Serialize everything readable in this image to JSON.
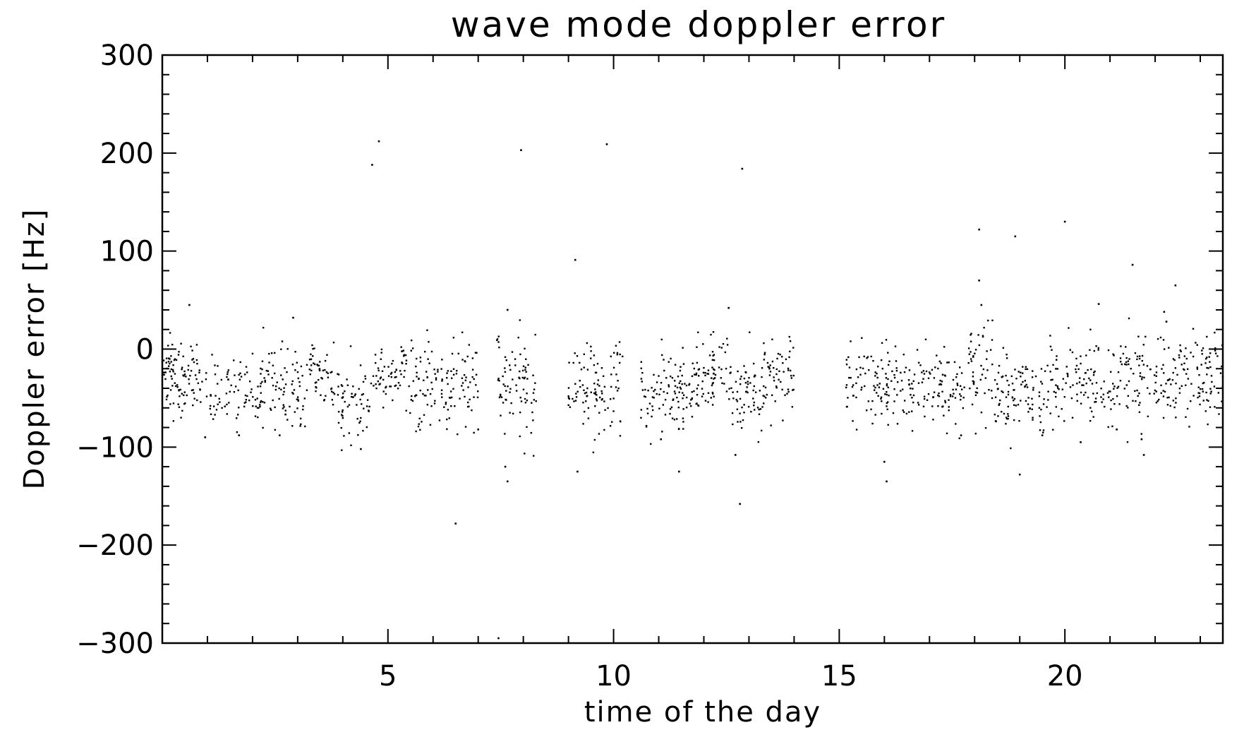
{
  "chart_data": {
    "type": "scatter",
    "title": "wave mode doppler error",
    "xlabel": "time of the day",
    "ylabel": "Doppler error [Hz]",
    "xlim": [
      0,
      23.5
    ],
    "ylim": [
      -300,
      300
    ],
    "xticks": [
      {
        "value": 5,
        "label": "5"
      },
      {
        "value": 10,
        "label": "10"
      },
      {
        "value": 15,
        "label": "15"
      },
      {
        "value": 20,
        "label": "20"
      }
    ],
    "yticks": [
      {
        "value": 300,
        "label": "300"
      },
      {
        "value": 200,
        "label": "200"
      },
      {
        "value": 100,
        "label": "100"
      },
      {
        "value": 0,
        "label": "0"
      },
      {
        "value": -100,
        "label": "−100"
      },
      {
        "value": -200,
        "label": "−200"
      },
      {
        "value": -300,
        "label": "−300"
      }
    ],
    "grid": false,
    "legend": "none",
    "marker_color": "#000000",
    "clusters": [
      {
        "x_start": 0.0,
        "x_end": 0.8,
        "center": -30,
        "spread": 22,
        "count": 90
      },
      {
        "x_start": 0.8,
        "x_end": 2.2,
        "center": -45,
        "spread": 18,
        "count": 90
      },
      {
        "x_start": 2.2,
        "x_end": 3.2,
        "center": -35,
        "spread": 25,
        "count": 80
      },
      {
        "x_start": 3.2,
        "x_end": 3.8,
        "center": -25,
        "spread": 15,
        "count": 50
      },
      {
        "x_start": 3.8,
        "x_end": 4.6,
        "center": -50,
        "spread": 20,
        "count": 60
      },
      {
        "x_start": 4.6,
        "x_end": 5.4,
        "center": -25,
        "spread": 15,
        "count": 60
      },
      {
        "x_start": 5.4,
        "x_end": 6.3,
        "center": -40,
        "spread": 25,
        "count": 70
      },
      {
        "x_start": 6.3,
        "x_end": 7.0,
        "center": -30,
        "spread": 25,
        "count": 60
      },
      {
        "x_start": 7.4,
        "x_end": 8.3,
        "center": -35,
        "spread": 28,
        "count": 80
      },
      {
        "x_start": 9.0,
        "x_end": 10.2,
        "center": -40,
        "spread": 25,
        "count": 100
      },
      {
        "x_start": 10.6,
        "x_end": 11.6,
        "center": -45,
        "spread": 20,
        "count": 90
      },
      {
        "x_start": 11.6,
        "x_end": 12.6,
        "center": -30,
        "spread": 20,
        "count": 90
      },
      {
        "x_start": 12.6,
        "x_end": 13.3,
        "center": -45,
        "spread": 22,
        "count": 60
      },
      {
        "x_start": 13.3,
        "x_end": 14.0,
        "center": -25,
        "spread": 20,
        "count": 60
      },
      {
        "x_start": 15.1,
        "x_end": 16.4,
        "center": -35,
        "spread": 20,
        "count": 100
      },
      {
        "x_start": 16.4,
        "x_end": 17.8,
        "center": -40,
        "spread": 18,
        "count": 110
      },
      {
        "x_start": 17.8,
        "x_end": 18.4,
        "center": -15,
        "spread": 25,
        "count": 50
      },
      {
        "x_start": 18.4,
        "x_end": 19.6,
        "center": -45,
        "spread": 20,
        "count": 100
      },
      {
        "x_start": 19.6,
        "x_end": 21.2,
        "center": -35,
        "spread": 20,
        "count": 120
      },
      {
        "x_start": 21.2,
        "x_end": 22.2,
        "center": -30,
        "spread": 22,
        "count": 80
      },
      {
        "x_start": 22.2,
        "x_end": 23.5,
        "center": -30,
        "spread": 22,
        "count": 110
      }
    ],
    "outliers": [
      {
        "x": 0.6,
        "y": 45
      },
      {
        "x": 0.95,
        "y": -90
      },
      {
        "x": 1.7,
        "y": -88
      },
      {
        "x": 2.6,
        "y": -88
      },
      {
        "x": 2.9,
        "y": 32
      },
      {
        "x": 4.4,
        "y": -102
      },
      {
        "x": 4.65,
        "y": 188
      },
      {
        "x": 4.8,
        "y": 212
      },
      {
        "x": 6.5,
        "y": -178
      },
      {
        "x": 7.0,
        "y": -82
      },
      {
        "x": 7.45,
        "y": -295
      },
      {
        "x": 7.6,
        "y": -120
      },
      {
        "x": 7.65,
        "y": -135
      },
      {
        "x": 7.65,
        "y": 40
      },
      {
        "x": 7.95,
        "y": 203
      },
      {
        "x": 9.15,
        "y": 91
      },
      {
        "x": 9.2,
        "y": -125
      },
      {
        "x": 9.85,
        "y": 209
      },
      {
        "x": 11.05,
        "y": -92
      },
      {
        "x": 11.45,
        "y": -125
      },
      {
        "x": 12.55,
        "y": 42
      },
      {
        "x": 12.7,
        "y": -108
      },
      {
        "x": 12.8,
        "y": -158
      },
      {
        "x": 12.85,
        "y": 184
      },
      {
        "x": 16.0,
        "y": -115
      },
      {
        "x": 16.05,
        "y": -135
      },
      {
        "x": 17.7,
        "y": -88
      },
      {
        "x": 18.1,
        "y": 122
      },
      {
        "x": 18.1,
        "y": 70
      },
      {
        "x": 18.15,
        "y": 45
      },
      {
        "x": 18.9,
        "y": 115
      },
      {
        "x": 19.0,
        "y": -128
      },
      {
        "x": 19.5,
        "y": -88
      },
      {
        "x": 20.0,
        "y": 130
      },
      {
        "x": 20.35,
        "y": -95
      },
      {
        "x": 20.75,
        "y": 46
      },
      {
        "x": 21.15,
        "y": -82
      },
      {
        "x": 21.5,
        "y": 86
      },
      {
        "x": 21.7,
        "y": -92
      },
      {
        "x": 21.75,
        "y": -108
      },
      {
        "x": 22.45,
        "y": 65
      },
      {
        "x": 22.2,
        "y": 38
      },
      {
        "x": 22.25,
        "y": 28
      }
    ]
  }
}
